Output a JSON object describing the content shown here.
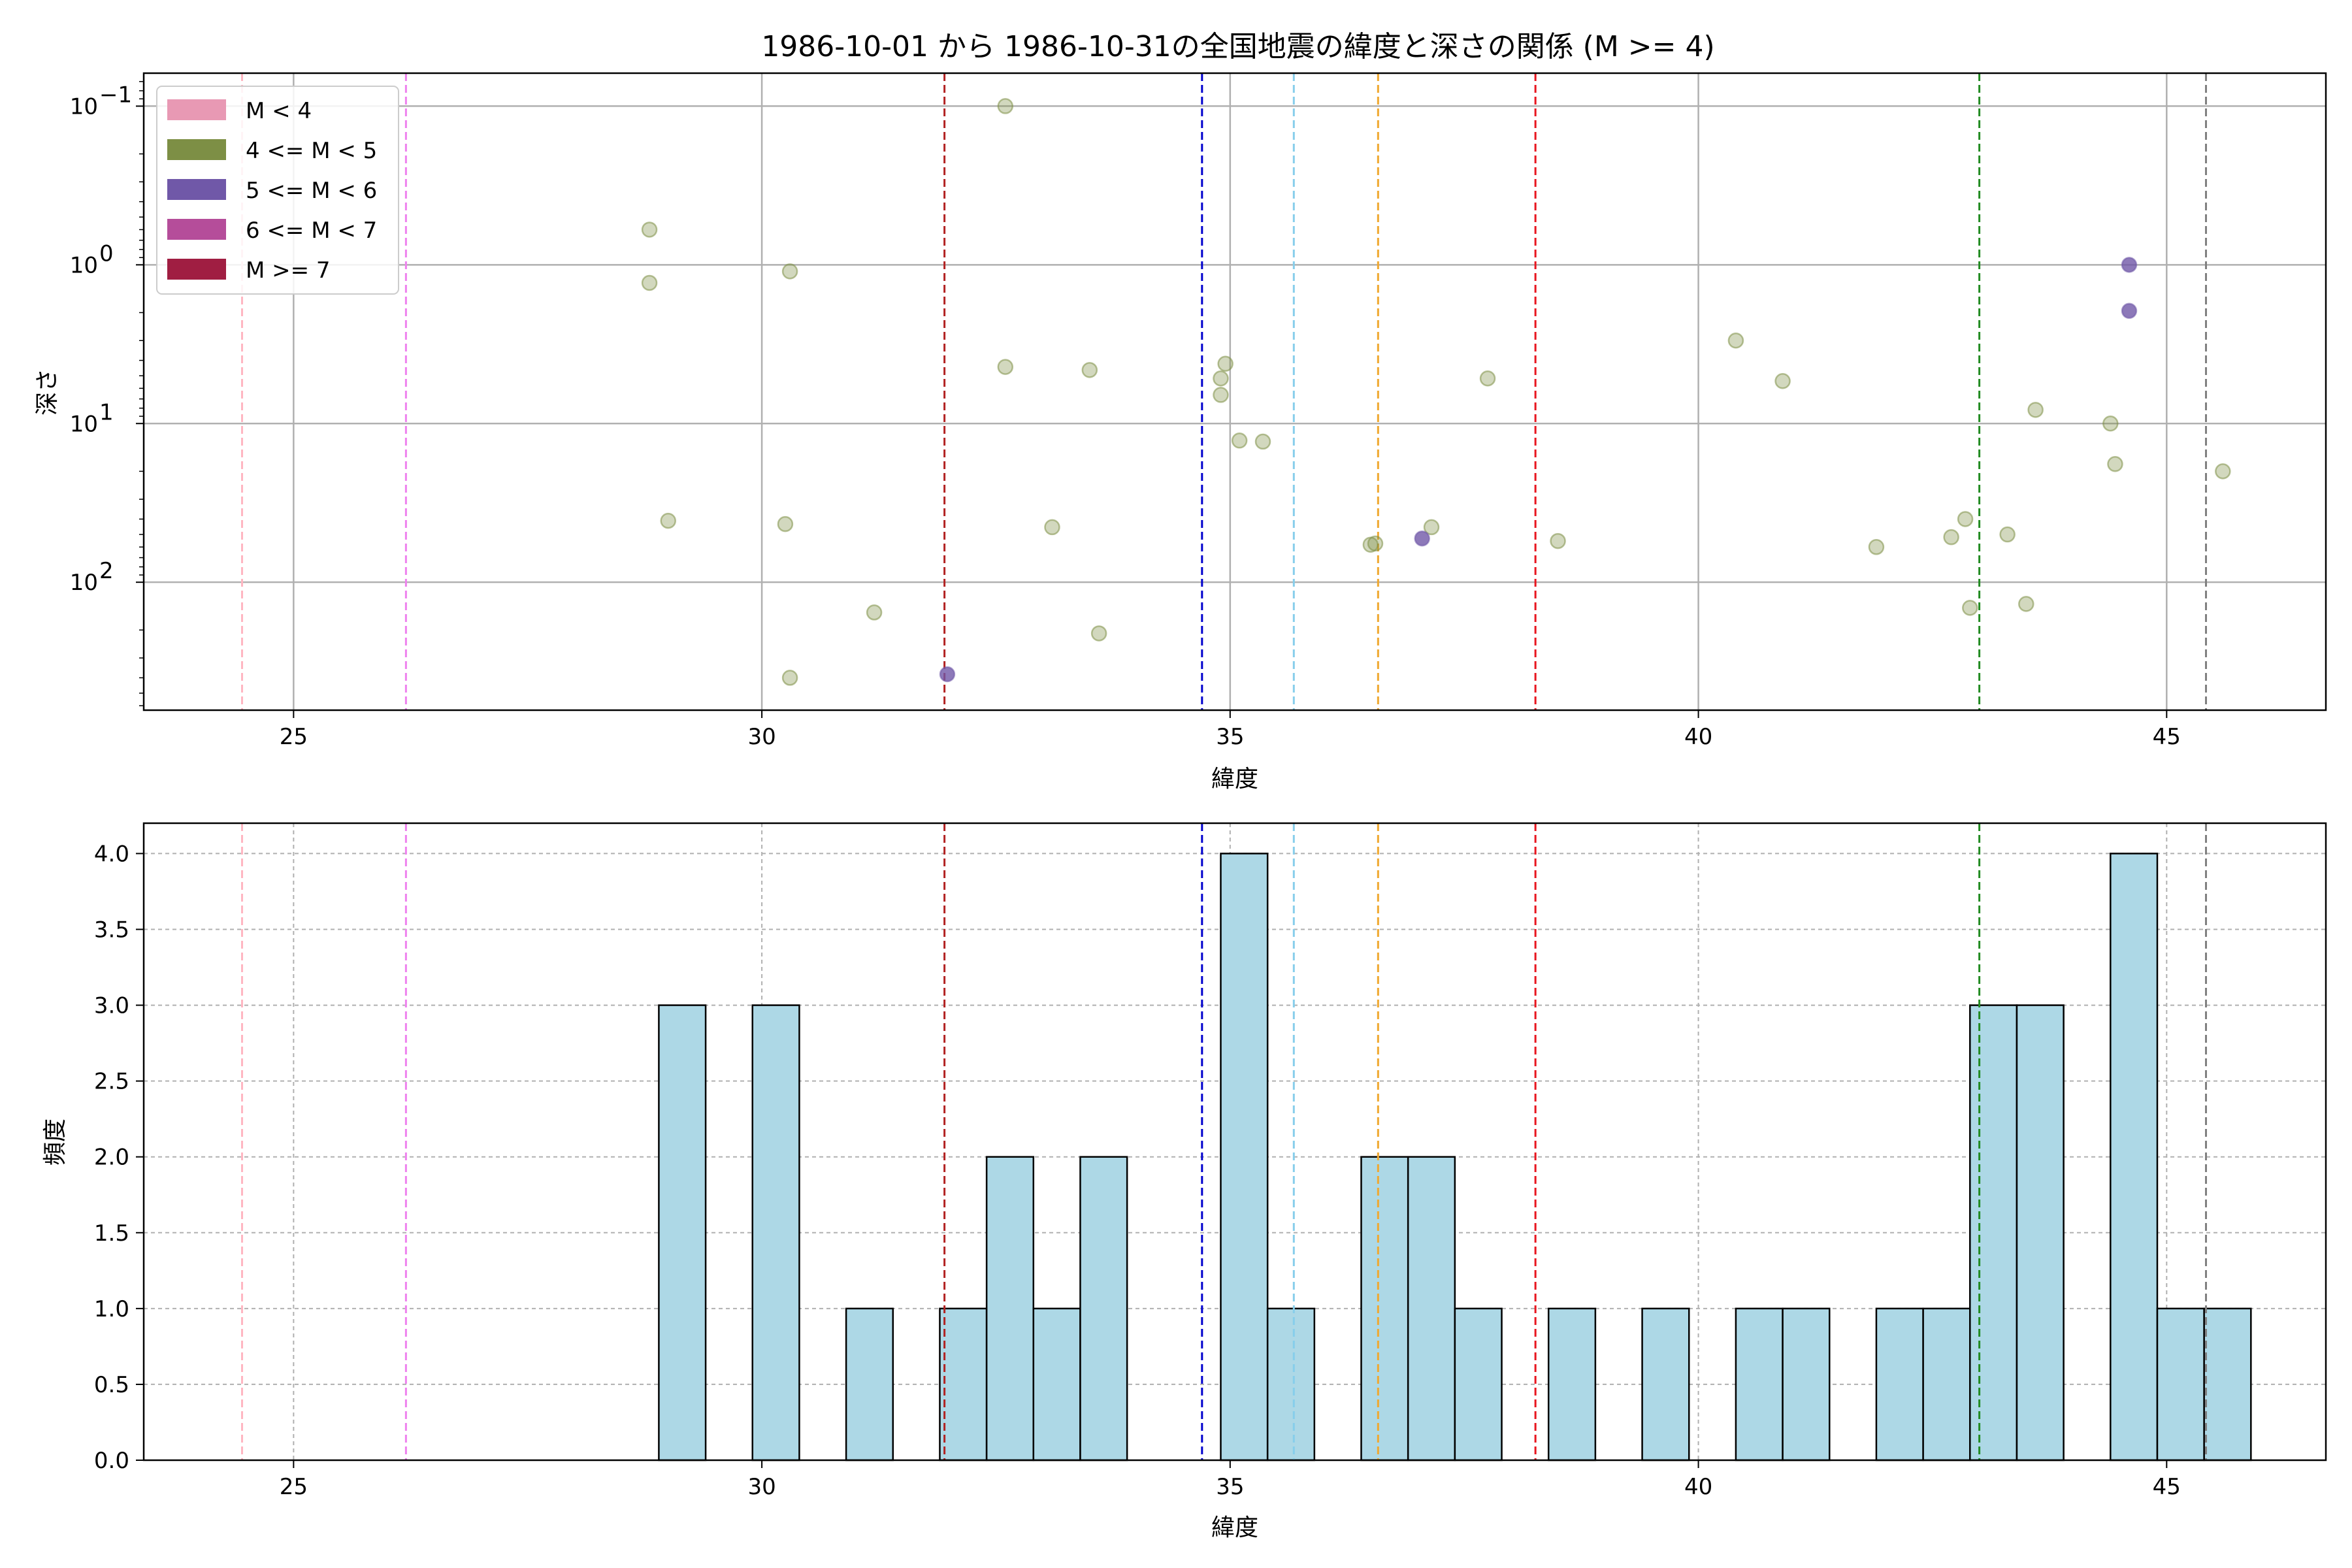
{
  "chart_data": [
    {
      "type": "scatter",
      "title": "1986-10-01 から 1986-10-31の全国地震の緯度と深さの関係 (M >= 4)",
      "xlabel": "緯度",
      "ylabel": "深さ",
      "xlim": [
        23.4,
        46.7
      ],
      "ylim": [
        0.062,
        640
      ],
      "y_scale": "log",
      "y_inverted": true,
      "grid": true,
      "x_ticks": [
        25,
        30,
        35,
        40,
        45
      ],
      "y_ticks": [
        {
          "value": 0.1,
          "base": "10",
          "exp": "−1"
        },
        {
          "value": 1,
          "base": "10",
          "exp": "0"
        },
        {
          "value": 10,
          "base": "10",
          "exp": "1"
        },
        {
          "value": 100,
          "base": "10",
          "exp": "2"
        }
      ],
      "legend": {
        "position": "upper left",
        "entries": [
          {
            "label": "M < 4",
            "color": "#e899b4"
          },
          {
            "label": "4 <= M < 5",
            "color": "#7d8f45"
          },
          {
            "label": "5 <= M < 6",
            "color": "#7058a8"
          },
          {
            "label": "6 <= M < 7",
            "color": "#b54d9a"
          },
          {
            "label": "M >= 7",
            "color": "#a01e42"
          }
        ]
      },
      "series": [
        {
          "name": "4 <= M < 5",
          "color": "#7d8f45",
          "points": [
            [
              28.8,
              0.6
            ],
            [
              28.8,
              1.3
            ],
            [
              29.0,
              41
            ],
            [
              30.3,
              1.1
            ],
            [
              30.25,
              43
            ],
            [
              30.3,
              400
            ],
            [
              31.2,
              155
            ],
            [
              32.6,
              4.4
            ],
            [
              32.6,
              0.1
            ],
            [
              33.1,
              45
            ],
            [
              33.5,
              4.6
            ],
            [
              33.6,
              210
            ],
            [
              34.95,
              4.2
            ],
            [
              34.9,
              5.2
            ],
            [
              34.9,
              6.6
            ],
            [
              35.1,
              12.8
            ],
            [
              35.35,
              13.0
            ],
            [
              36.5,
              58
            ],
            [
              36.55,
              57
            ],
            [
              37.15,
              45
            ],
            [
              37.75,
              5.2
            ],
            [
              38.5,
              55
            ],
            [
              40.4,
              3.0
            ],
            [
              40.9,
              5.4
            ],
            [
              41.9,
              60
            ],
            [
              42.7,
              52
            ],
            [
              42.85,
              40
            ],
            [
              42.9,
              145
            ],
            [
              43.3,
              50
            ],
            [
              43.5,
              137
            ],
            [
              43.6,
              8.2
            ],
            [
              44.4,
              10
            ],
            [
              44.45,
              18
            ],
            [
              45.6,
              20
            ]
          ]
        },
        {
          "name": "5 <= M < 6",
          "color": "#7058a8",
          "points": [
            [
              31.98,
              380
            ],
            [
              37.05,
              53
            ],
            [
              44.6,
              1.0
            ],
            [
              44.6,
              1.95
            ]
          ]
        }
      ],
      "reference_lines": [
        {
          "x": 24.45,
          "color": "#ffb6c1"
        },
        {
          "x": 26.2,
          "color": "#ee82ee"
        },
        {
          "x": 31.95,
          "color": "#b22222"
        },
        {
          "x": 34.7,
          "color": "#0000cd"
        },
        {
          "x": 35.68,
          "color": "#87ceeb"
        },
        {
          "x": 36.58,
          "color": "#f0a830"
        },
        {
          "x": 38.26,
          "color": "#e8161f"
        },
        {
          "x": 43.0,
          "color": "#228b22"
        },
        {
          "x": 45.42,
          "color": "#808080"
        }
      ]
    },
    {
      "type": "bar",
      "xlabel": "緯度",
      "ylabel": "頻度",
      "xlim": [
        23.4,
        46.7
      ],
      "ylim": [
        0,
        4.2
      ],
      "grid": true,
      "grid_style": "dashed",
      "bar_color": "#add8e6",
      "edge_color": "#000000",
      "x_ticks": [
        25,
        30,
        35,
        40,
        45
      ],
      "y_ticks": [
        "0.0",
        "0.5",
        "1.0",
        "1.5",
        "2.0",
        "2.5",
        "3.0",
        "3.5",
        "4.0"
      ],
      "bin_width": 0.5,
      "bins": [
        {
          "left": 28.9,
          "count": 3
        },
        {
          "left": 29.9,
          "count": 3
        },
        {
          "left": 30.9,
          "count": 1
        },
        {
          "left": 31.9,
          "count": 1
        },
        {
          "left": 32.4,
          "count": 2
        },
        {
          "left": 32.9,
          "count": 1
        },
        {
          "left": 33.4,
          "count": 2
        },
        {
          "left": 34.9,
          "count": 4
        },
        {
          "left": 35.4,
          "count": 1
        },
        {
          "left": 36.4,
          "count": 2
        },
        {
          "left": 36.9,
          "count": 2
        },
        {
          "left": 37.4,
          "count": 1
        },
        {
          "left": 38.4,
          "count": 1
        },
        {
          "left": 39.4,
          "count": 1
        },
        {
          "left": 40.4,
          "count": 1
        },
        {
          "left": 40.9,
          "count": 1
        },
        {
          "left": 41.9,
          "count": 1
        },
        {
          "left": 42.4,
          "count": 1
        },
        {
          "left": 42.9,
          "count": 3
        },
        {
          "left": 43.4,
          "count": 3
        },
        {
          "left": 44.4,
          "count": 4
        },
        {
          "left": 44.9,
          "count": 1
        },
        {
          "left": 45.4,
          "count": 1
        }
      ],
      "reference_lines": [
        {
          "x": 24.45,
          "color": "#ffb6c1"
        },
        {
          "x": 26.2,
          "color": "#ee82ee"
        },
        {
          "x": 31.95,
          "color": "#b22222"
        },
        {
          "x": 34.7,
          "color": "#0000cd"
        },
        {
          "x": 35.68,
          "color": "#87ceeb"
        },
        {
          "x": 36.58,
          "color": "#f0a830"
        },
        {
          "x": 38.26,
          "color": "#e8161f"
        },
        {
          "x": 43.0,
          "color": "#228b22"
        },
        {
          "x": 45.42,
          "color": "#808080"
        }
      ]
    }
  ]
}
